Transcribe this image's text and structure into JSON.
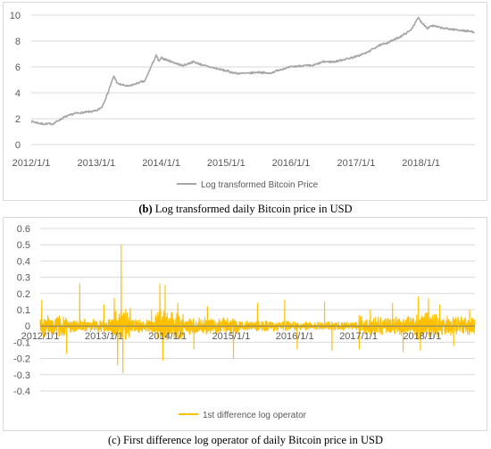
{
  "chart_data": [
    {
      "type": "line",
      "panel": "b",
      "x_tick_labels": [
        "2012/1/1",
        "2013/1/1",
        "2014/1/1",
        "2015/1/1",
        "2016/1/1",
        "2017/1/1",
        "2018/1/1"
      ],
      "ylim": [
        0,
        10
      ],
      "y_ticks": [
        0,
        2,
        4,
        6,
        8,
        10
      ],
      "grid": true,
      "legend_position": "bottom",
      "series": [
        {
          "name": "Log transformed Bitcoin Price",
          "color": "#a6a6a6",
          "x": [
            "2012/1/1",
            "2012/3/1",
            "2012/5/1",
            "2012/7/1",
            "2012/9/1",
            "2012/11/1",
            "2013/1/1",
            "2013/2/1",
            "2013/3/1",
            "2013/4/10",
            "2013/5/1",
            "2013/7/1",
            "2013/9/1",
            "2013/10/1",
            "2013/11/1",
            "2013/12/4",
            "2013/12/20",
            "2014/1/1",
            "2014/3/1",
            "2014/5/1",
            "2014/7/1",
            "2014/9/1",
            "2014/11/1",
            "2015/1/1",
            "2015/3/1",
            "2015/5/1",
            "2015/7/1",
            "2015/9/1",
            "2015/11/1",
            "2016/1/1",
            "2016/3/1",
            "2016/5/1",
            "2016/7/1",
            "2016/9/1",
            "2016/11/1",
            "2017/1/1",
            "2017/3/1",
            "2017/5/1",
            "2017/7/1",
            "2017/9/1",
            "2017/11/1",
            "2017/12/17",
            "2018/1/1",
            "2018/2/6",
            "2018/3/1",
            "2018/5/1",
            "2018/7/1",
            "2018/9/1",
            "2018/10/31"
          ],
          "values": [
            1.8,
            1.6,
            1.6,
            2.1,
            2.4,
            2.5,
            2.6,
            2.9,
            3.8,
            5.3,
            4.7,
            4.5,
            4.8,
            4.9,
            5.9,
            6.9,
            6.4,
            6.7,
            6.4,
            6.1,
            6.4,
            6.1,
            5.9,
            5.7,
            5.5,
            5.5,
            5.6,
            5.5,
            5.8,
            6.0,
            6.1,
            6.1,
            6.4,
            6.4,
            6.6,
            6.8,
            7.1,
            7.6,
            7.9,
            8.3,
            8.8,
            9.8,
            9.5,
            9.0,
            9.2,
            9.0,
            8.9,
            8.8,
            8.7
          ]
        }
      ]
    },
    {
      "type": "line",
      "panel": "c",
      "x_tick_labels": [
        "2012/1/1",
        "2013/1/1",
        "2014/1/1",
        "2015/1/1",
        "2016/1/1",
        "2017/1/1",
        "2018/1/1"
      ],
      "y_tick_labels": [
        "0.6",
        "0.5",
        "0.4",
        "0.3",
        "0.2",
        "0.1",
        "0",
        "-0.1",
        "-0.2",
        "-0.3",
        "-0.4"
      ],
      "ylim": [
        -0.4,
        0.6
      ],
      "y_ticks": [
        0.6,
        0.5,
        0.4,
        0.3,
        0.2,
        0.1,
        0,
        -0.1,
        -0.2,
        -0.3,
        -0.4
      ],
      "grid": true,
      "legend_position": "bottom",
      "series": [
        {
          "name": "1st difference log operator",
          "color": "#ffc000",
          "x": [
            "2012/1/10",
            "2012/6/1",
            "2012/8/15",
            "2013/1/1",
            "2013/3/1",
            "2013/3/20",
            "2013/4/10",
            "2013/4/20",
            "2013/6/1",
            "2013/10/1",
            "2013/11/18",
            "2013/12/5",
            "2013/12/18",
            "2014/3/1",
            "2014/6/1",
            "2014/8/18",
            "2015/1/14",
            "2015/6/1",
            "2015/11/4",
            "2016/1/15",
            "2016/6/20",
            "2016/8/2",
            "2017/1/5",
            "2017/3/10",
            "2017/7/15",
            "2017/9/14",
            "2017/12/10",
            "2017/12/22",
            "2018/2/6",
            "2018/4/12",
            "2018/7/1",
            "2018/10/1"
          ],
          "spikes": [
            0.16,
            -0.17,
            0.26,
            0.13,
            0.17,
            -0.24,
            0.5,
            -0.29,
            0.11,
            0.1,
            0.26,
            -0.21,
            0.25,
            0.14,
            -0.14,
            0.12,
            -0.2,
            0.14,
            0.16,
            -0.14,
            0.15,
            -0.15,
            -0.14,
            0.1,
            0.14,
            -0.16,
            0.18,
            -0.15,
            0.17,
            0.13,
            -0.12,
            0.1
          ]
        }
      ]
    }
  ],
  "captions": {
    "b": {
      "label": "(b)",
      "text": " Log transformed daily Bitcoin price in USD"
    },
    "c": {
      "text": "(c) First difference log operator of daily Bitcoin price in USD"
    }
  }
}
